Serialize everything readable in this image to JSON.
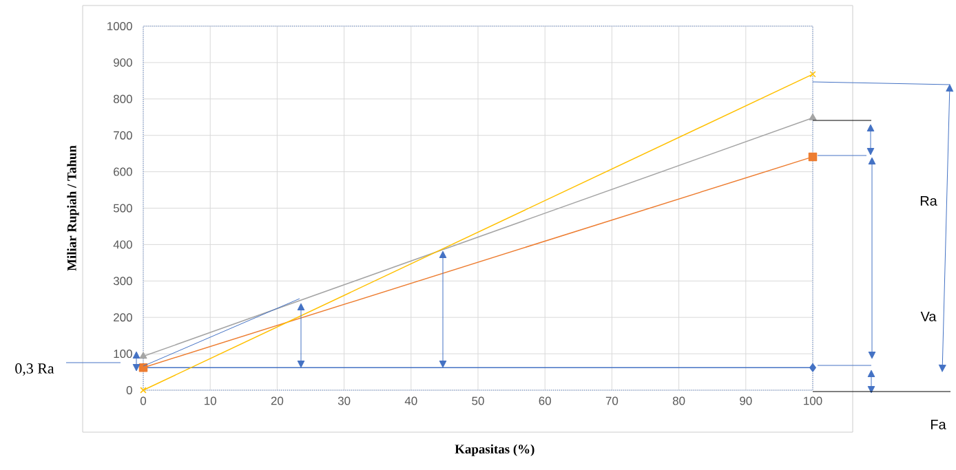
{
  "chart_data": {
    "type": "line",
    "xlabel": "Kapasitas (%)",
    "ylabel": "Miliar Rupiah / Tahun",
    "x": [
      0,
      100
    ],
    "series": [
      {
        "color": "#4472c4",
        "marker": "diamond",
        "values": [
          62,
          62
        ]
      },
      {
        "color": "#ed7d31",
        "marker": "square",
        "values": [
          62,
          641
        ]
      },
      {
        "color": "#a5a5a5",
        "marker": "triangle",
        "values": [
          93,
          748
        ]
      },
      {
        "color": "#ffc000",
        "marker": "cross",
        "values": [
          0,
          868
        ]
      }
    ],
    "xlim": [
      0,
      100
    ],
    "ylim": [
      0,
      1000
    ],
    "xticks": [
      0,
      10,
      20,
      30,
      40,
      50,
      60,
      70,
      80,
      90,
      100
    ],
    "yticks": [
      0,
      100,
      200,
      300,
      400,
      500,
      600,
      700,
      800,
      900,
      1000
    ],
    "grid": true,
    "annotations": [
      "Ra",
      "Va",
      "Fa",
      "0,3 Ra"
    ]
  }
}
